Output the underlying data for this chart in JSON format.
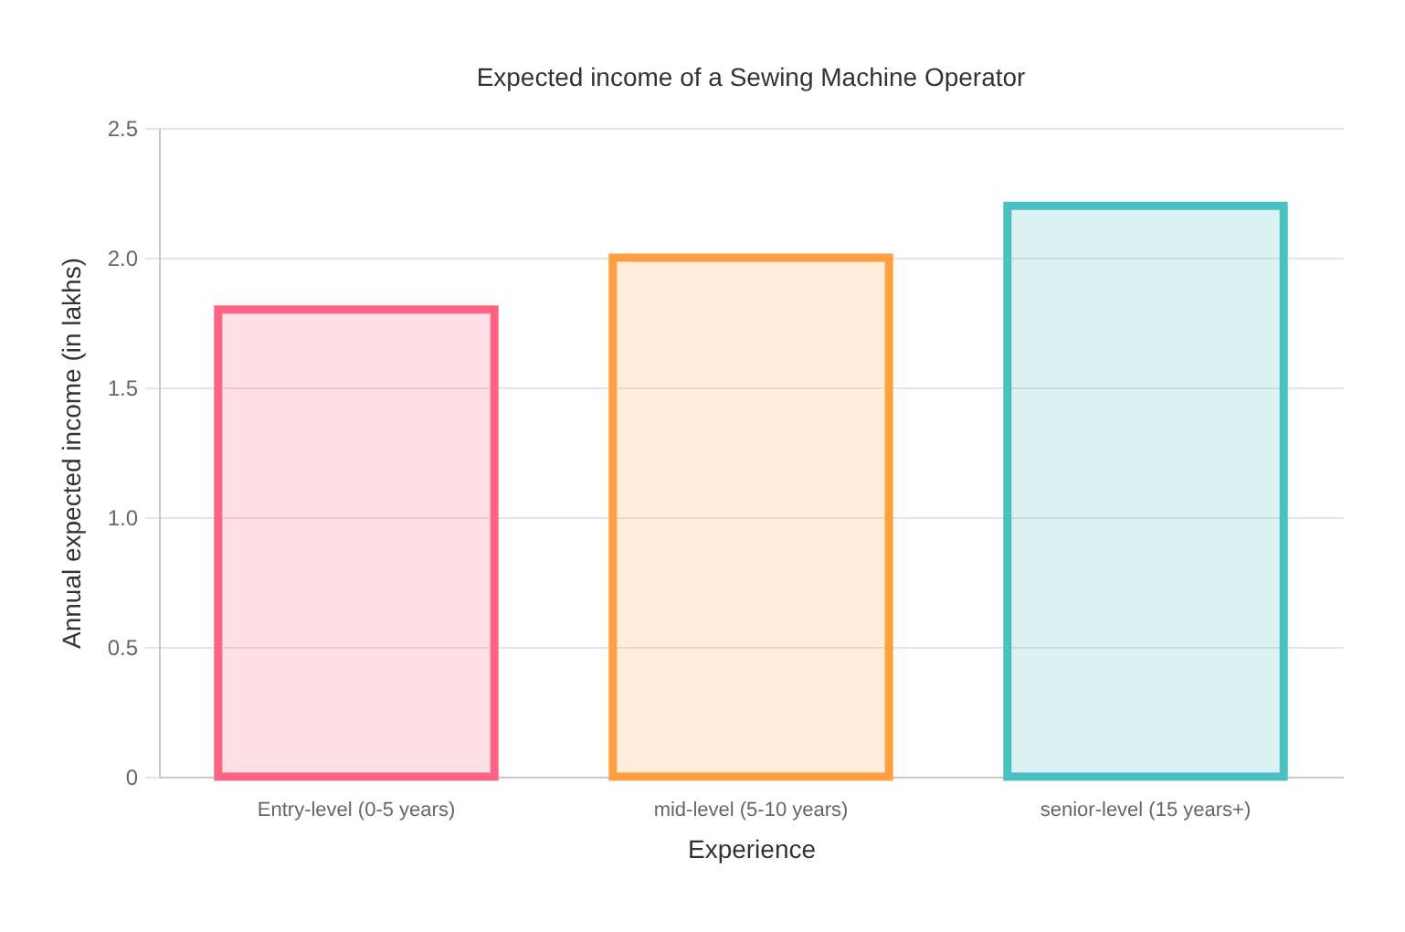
{
  "chart_data": {
    "type": "bar",
    "title": "Expected income of a Sewing Machine Operator",
    "xlabel": "Experience",
    "ylabel": "Annual expected income (in lakhs)",
    "categories": [
      "Entry-level (0-5 years)",
      "mid-level (5-10 years)",
      "senior-level (15 years+)"
    ],
    "values": [
      1.8,
      2.0,
      2.2
    ],
    "colors": [
      "#ff6384",
      "#ff9f40",
      "#4bc0c0"
    ],
    "ylim": [
      0,
      2.5
    ],
    "yticks": [
      0,
      0.5,
      {
        "value": 1,
        "label": "1.0"
      },
      1.5,
      {
        "value": 2,
        "label": "2.0"
      },
      2.5
    ],
    "grid": "y"
  }
}
